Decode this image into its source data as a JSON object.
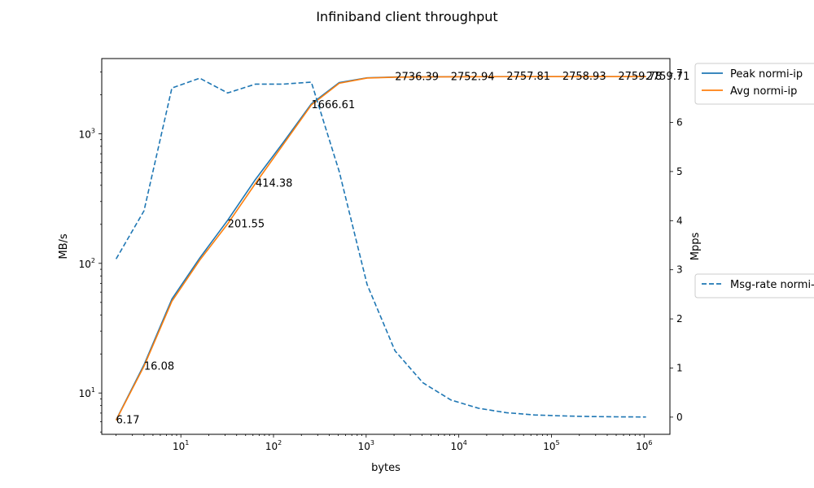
{
  "chart_data": {
    "type": "line",
    "title": "Infiniband client throughput",
    "xlabel": "bytes",
    "ylabel_left": "MB/s",
    "ylabel_right": "Mpps",
    "x_scale": "log",
    "y_left_scale": "log",
    "y_right_scale": "linear",
    "xlim": [
      1.4,
      1900000
    ],
    "ylim_left": [
      4.8,
      3800
    ],
    "ylim_right": [
      -0.35,
      7.3
    ],
    "grid": false,
    "x": [
      2,
      4,
      8,
      16,
      32,
      64,
      128,
      256,
      512,
      1024,
      2048,
      4096,
      8192,
      16384,
      32768,
      65536,
      131072,
      262144,
      524288,
      1048576
    ],
    "x_ticks": [
      {
        "value": 10,
        "label": "10",
        "exp": "1"
      },
      {
        "value": 100,
        "label": "10",
        "exp": "2"
      },
      {
        "value": 1000,
        "label": "10",
        "exp": "3"
      },
      {
        "value": 10000,
        "label": "10",
        "exp": "4"
      },
      {
        "value": 100000,
        "label": "10",
        "exp": "5"
      },
      {
        "value": 1000000,
        "label": "10",
        "exp": "6"
      }
    ],
    "y_left_ticks": [
      {
        "value": 10,
        "label": "10",
        "exp": "1"
      },
      {
        "value": 100,
        "label": "10",
        "exp": "2"
      },
      {
        "value": 1000,
        "label": "10",
        "exp": "3"
      }
    ],
    "y_right_ticks": [
      {
        "value": 0,
        "label": "0"
      },
      {
        "value": 1,
        "label": "1"
      },
      {
        "value": 2,
        "label": "2"
      },
      {
        "value": 3,
        "label": "3"
      },
      {
        "value": 4,
        "label": "4"
      },
      {
        "value": 5,
        "label": "5"
      },
      {
        "value": 6,
        "label": "6"
      },
      {
        "value": 7,
        "label": "7"
      }
    ],
    "series": [
      {
        "name": "Peak normi-ip",
        "axis": "left",
        "style": "solid",
        "color": "#1f77b4",
        "values": [
          6.2,
          16.5,
          53,
          110,
          215,
          445,
          860,
          1700,
          2480,
          2700,
          2736.39,
          2745,
          2752.94,
          2755,
          2757.81,
          2758,
          2758.93,
          2759,
          2759.78,
          2759.71
        ]
      },
      {
        "name": "Avg normi-ip",
        "axis": "left",
        "style": "solid",
        "color": "#ff7f0e",
        "values": [
          6.17,
          16.08,
          51,
          106,
          201.55,
          414.38,
          830,
          1666.61,
          2450,
          2690,
          2730,
          2742,
          2750,
          2753,
          2756,
          2757,
          2758,
          2758.5,
          2759,
          2759.3
        ]
      },
      {
        "name": "Msg-rate normi-ip",
        "axis": "right",
        "style": "dashed",
        "color": "#1f77b4",
        "values": [
          3.22,
          4.2,
          6.7,
          6.9,
          6.6,
          6.78,
          6.78,
          6.82,
          5.0,
          2.7,
          1.35,
          0.7,
          0.35,
          0.18,
          0.09,
          0.045,
          0.025,
          0.012,
          0.006,
          0.003
        ]
      }
    ],
    "annotations": [
      {
        "x": 2,
        "y": 6.17,
        "text": "6.17"
      },
      {
        "x": 4,
        "y": 16.08,
        "text": "16.08"
      },
      {
        "x": 32,
        "y": 201.55,
        "text": "201.55"
      },
      {
        "x": 64,
        "y": 414.38,
        "text": "414.38"
      },
      {
        "x": 256,
        "y": 1666.61,
        "text": "1666.61"
      },
      {
        "x": 2048,
        "y": 2736.39,
        "text": "2736.39"
      },
      {
        "x": 8192,
        "y": 2752.94,
        "text": "2752.94"
      },
      {
        "x": 32768,
        "y": 2757.81,
        "text": "2757.81"
      },
      {
        "x": 131072,
        "y": 2758.93,
        "text": "2758.93"
      },
      {
        "x": 524288,
        "y": 2759.78,
        "text": "2759.78"
      },
      {
        "x": 1048576,
        "y": 2759.71,
        "text": "2759.71"
      }
    ],
    "legends": [
      {
        "placement": "outside-top-right",
        "entries": [
          "Peak normi-ip",
          "Avg normi-ip"
        ]
      },
      {
        "placement": "outside-center-right",
        "entries": [
          "Msg-rate normi-ip"
        ]
      }
    ]
  }
}
